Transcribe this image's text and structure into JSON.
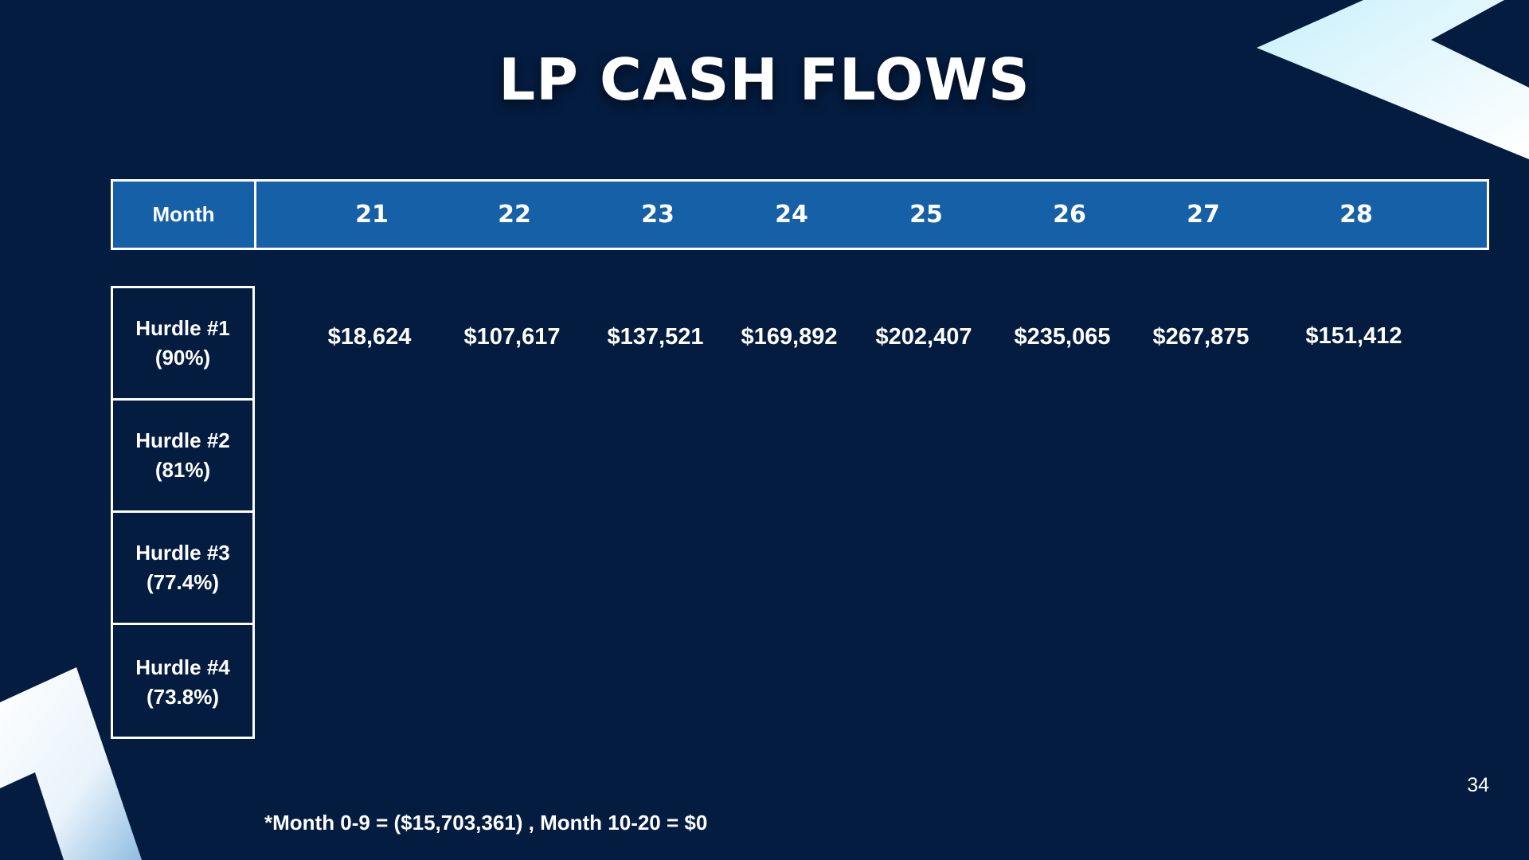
{
  "title": "LP CASH FLOWS",
  "header": {
    "label": "Month",
    "months": [
      "21",
      "22",
      "23",
      "24",
      "25",
      "26",
      "27",
      "28"
    ]
  },
  "hurdles": [
    {
      "name": "Hurdle #1",
      "pct": "(90%)"
    },
    {
      "name": "Hurdle #2",
      "pct": "(81%)"
    },
    {
      "name": "Hurdle #3",
      "pct": "(77.4%)"
    },
    {
      "name": "Hurdle #4",
      "pct": "(73.8%)"
    }
  ],
  "hurdle1_values": [
    "$18,624",
    "$107,617",
    "$137,521",
    "$169,892",
    "$202,407",
    "$235,065",
    "$267,875",
    "$151,412"
  ],
  "footnote": "*Month 0-9 = ($15,703,361) , Month 10-20 = $0",
  "page_number": "34",
  "colors": {
    "background": "#041c40",
    "header_fill": "#1560a6",
    "accent_light": "#d4f2fb"
  }
}
